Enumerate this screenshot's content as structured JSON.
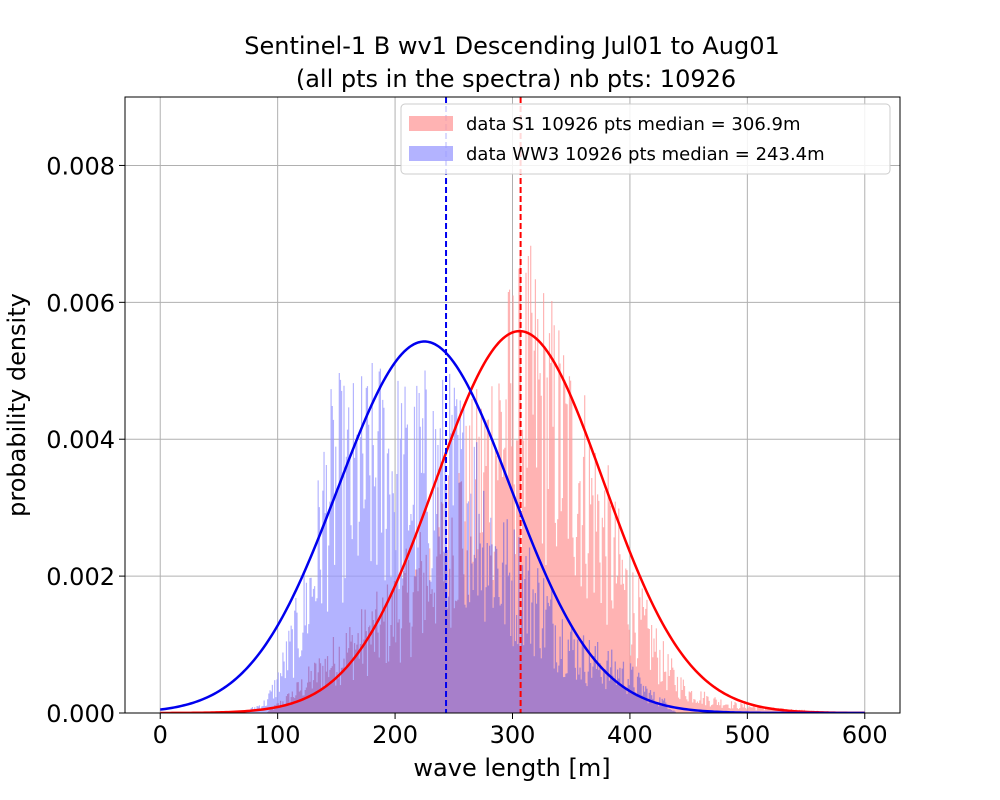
{
  "chart_data": {
    "type": "histogram",
    "title": "Sentinel-1 B wv1 Descending Jul01 to Aug01",
    "subtitle": "(all pts in the spectra) nb pts: 10926",
    "xlabel": "wave length [m]",
    "ylabel": "probability density",
    "xlim": [
      -30,
      630
    ],
    "ylim": [
      0,
      0.009
    ],
    "xticks": [
      0,
      100,
      200,
      300,
      400,
      500,
      600
    ],
    "xtick_labels": [
      "0",
      "100",
      "200",
      "300",
      "400",
      "500",
      "600"
    ],
    "yticks": [
      0,
      0.002,
      0.004,
      0.006,
      0.008
    ],
    "ytick_labels": [
      "0.000",
      "0.002",
      "0.004",
      "0.006",
      "0.008"
    ],
    "grid": true,
    "legend_position": "upper right",
    "series": [
      {
        "name": "data S1 10926 pts median = 306.9m",
        "color": "#ff9999",
        "fit_color": "#ff0000",
        "median": 306.9,
        "fit_mean": 306,
        "fit_std": 71.5,
        "range": [
          90,
          600
        ],
        "bin_width": 1,
        "envelope_x": [
          90,
          110,
          130,
          150,
          170,
          190,
          210,
          230,
          250,
          270,
          280,
          290,
          300,
          310,
          320,
          330,
          340,
          350,
          360,
          370,
          380,
          390,
          400,
          410,
          420,
          430,
          440,
          450,
          470,
          490,
          520,
          560,
          600
        ],
        "envelope_y": [
          0.0,
          0.0003,
          0.0007,
          0.0011,
          0.0014,
          0.0017,
          0.0022,
          0.0028,
          0.0036,
          0.0044,
          0.005,
          0.0056,
          0.006,
          0.0063,
          0.0062,
          0.0058,
          0.0054,
          0.005,
          0.0046,
          0.004,
          0.0034,
          0.0028,
          0.0022,
          0.0017,
          0.0013,
          0.0009,
          0.0006,
          0.0004,
          0.00025,
          0.00015,
          8e-05,
          3e-05,
          0.0
        ]
      },
      {
        "name": "data WW3 10926 pts median = 243.4m",
        "color": "#9999ff",
        "fit_color": "#0000ee",
        "median": 243.4,
        "fit_mean": 225,
        "fit_std": 73.5,
        "range": [
          70,
          440
        ],
        "bin_width": 1,
        "envelope_x": [
          70,
          90,
          100,
          110,
          120,
          130,
          140,
          150,
          160,
          170,
          180,
          190,
          200,
          210,
          220,
          230,
          240,
          250,
          260,
          270,
          280,
          290,
          300,
          310,
          320,
          330,
          340,
          350,
          360,
          370,
          380,
          390,
          400,
          410,
          420,
          430,
          440
        ],
        "envelope_y": [
          0.0,
          0.0002,
          0.0006,
          0.0012,
          0.0018,
          0.0026,
          0.004,
          0.0046,
          0.0044,
          0.0046,
          0.0047,
          0.0049,
          0.0047,
          0.0045,
          0.0046,
          0.0047,
          0.0046,
          0.0046,
          0.0044,
          0.004,
          0.0034,
          0.0028,
          0.0026,
          0.0025,
          0.0022,
          0.0019,
          0.0016,
          0.0013,
          0.0011,
          0.001,
          0.0009,
          0.0008,
          0.0007,
          0.0005,
          0.0003,
          0.0002,
          0.0
        ]
      }
    ],
    "overlap_color": "#a67dc8"
  }
}
